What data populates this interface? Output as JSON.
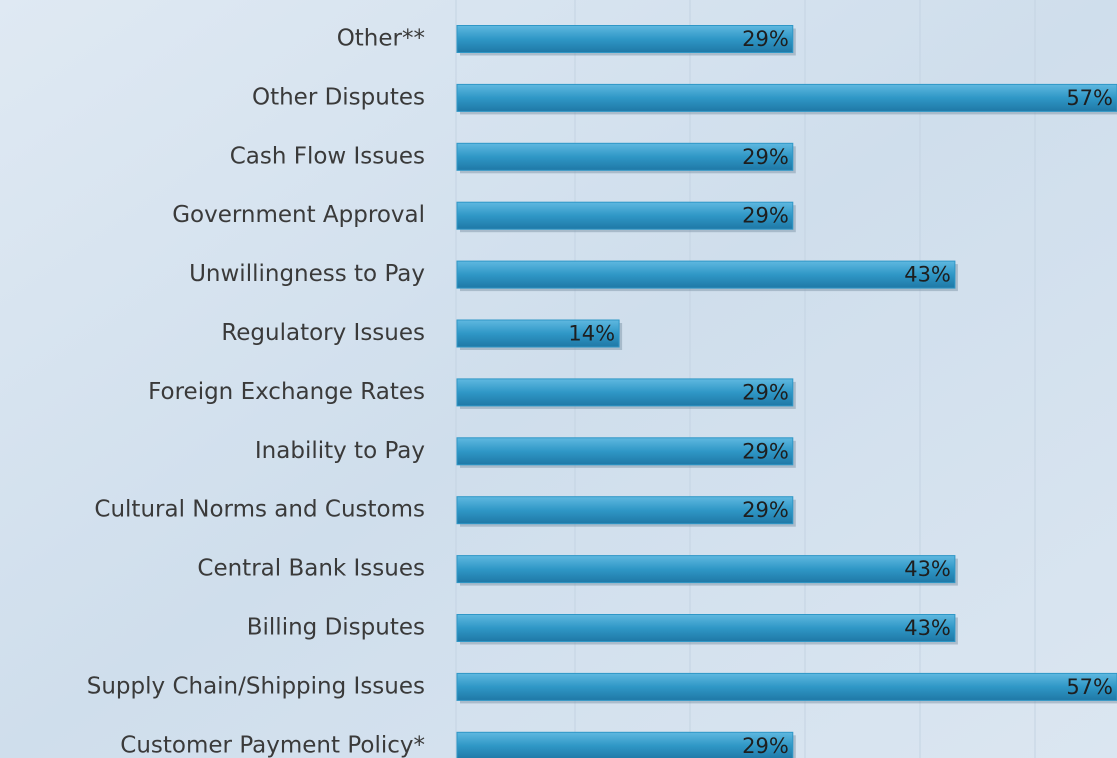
{
  "chart_data": {
    "type": "hbar",
    "categories": [
      "Other**",
      "Other Disputes",
      "Cash Flow Issues",
      "Government Approval",
      "Unwillingness to Pay",
      "Regulatory Issues",
      "Foreign Exchange Rates",
      "Inability to Pay",
      "Cultural Norms and Customs",
      "Central Bank Issues",
      "Billing Disputes",
      "Supply Chain/Shipping Issues",
      "Customer Payment Policy*"
    ],
    "values": [
      29,
      57,
      29,
      29,
      43,
      14,
      29,
      29,
      29,
      43,
      43,
      57,
      29
    ],
    "value_labels": [
      "29%",
      "57%",
      "29%",
      "29%",
      "43%",
      "14%",
      "29%",
      "29%",
      "29%",
      "43%",
      "43%",
      "57%",
      "29%"
    ],
    "color": "#2f97c6",
    "xlim": [
      0,
      57
    ]
  }
}
